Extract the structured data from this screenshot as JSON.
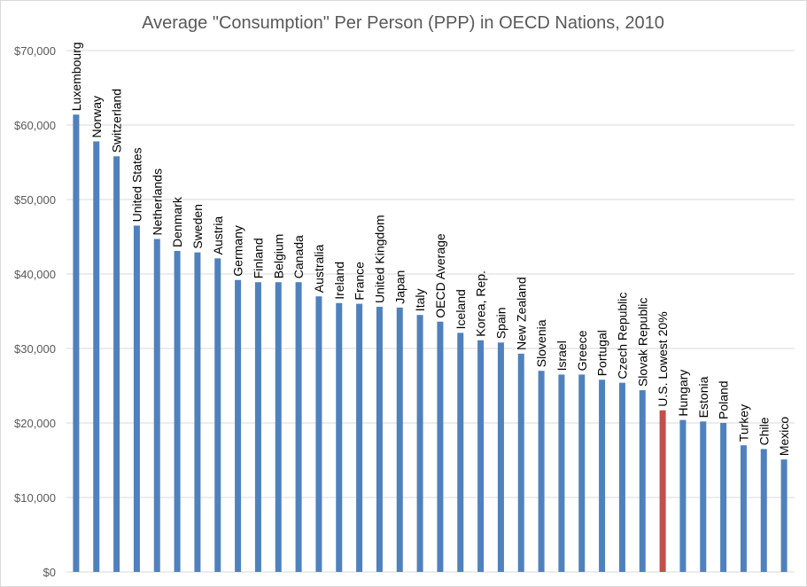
{
  "chart_data": {
    "type": "bar",
    "title": "Average \"Consumption\" Per Person (PPP) in OECD Nations, 2010",
    "xlabel": "",
    "ylabel": "",
    "ylim": [
      0,
      70000
    ],
    "yticks": [
      "$0",
      "$10,000",
      "$20,000",
      "$30,000",
      "$40,000",
      "$50,000",
      "$60,000",
      "$70,000"
    ],
    "grid": true,
    "legend": "none",
    "colors": {
      "default": "#4f81bd",
      "highlight": "#c0504d"
    },
    "highlight": "U.S. Lowest 20%",
    "categories": [
      "Luxembourg",
      "Norway",
      "Switzerland",
      "United States",
      "Netherlands",
      "Denmark",
      "Sweden",
      "Austria",
      "Germany",
      "Finland",
      "Belgium",
      "Canada",
      "Australia",
      "Ireland",
      "France",
      "United Kingdom",
      "Japan",
      "Italy",
      "OECD Average",
      "Iceland",
      "Korea, Rep.",
      "Spain",
      "New Zealand",
      "Slovenia",
      "Israel",
      "Greece",
      "Portugal",
      "Czech Republic",
      "Slovak Republic",
      "U.S. Lowest 20%",
      "Hungary",
      "Estonia",
      "Poland",
      "Turkey",
      "Chile",
      "Mexico"
    ],
    "values": [
      61400,
      57800,
      55800,
      46500,
      44700,
      43100,
      42900,
      42100,
      39200,
      38900,
      38900,
      38900,
      37000,
      36100,
      36000,
      35600,
      35500,
      34500,
      33600,
      32100,
      31100,
      30800,
      29300,
      27000,
      26500,
      26500,
      25800,
      25400,
      24400,
      21700,
      20400,
      20200,
      20000,
      17000,
      16500,
      15100
    ]
  }
}
